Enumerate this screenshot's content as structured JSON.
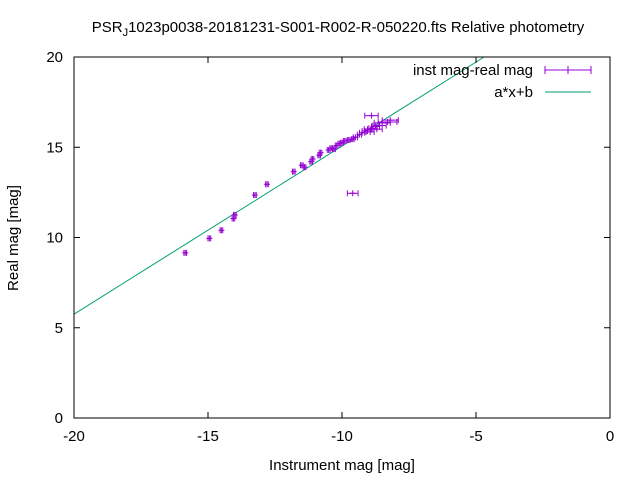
{
  "chart_data": {
    "type": "scatter",
    "title": "PSR_J1023p0038-20181231-S001-R002-R-050220.fts Relative photometry",
    "title_prefix": "PSR",
    "title_subscript": "J",
    "title_suffix": "1023p0038-20181231-S001-R002-R-050220.fts Relative photometry",
    "xlabel": "Instrument mag [mag]",
    "ylabel": "Real mag [mag]",
    "xlim": [
      -20,
      0
    ],
    "ylim": [
      0,
      20
    ],
    "x_ticks": [
      -20,
      -15,
      -10,
      -5,
      0
    ],
    "y_ticks": [
      0,
      5,
      10,
      15,
      20
    ],
    "x_tick_labels": [
      "-20",
      "-15",
      "-10",
      "-5",
      "0"
    ],
    "y_tick_labels": [
      "0",
      "5",
      "10",
      "15",
      "20"
    ],
    "grid": false,
    "legend_position": "top-right",
    "series": [
      {
        "name": "inst mag-real mag",
        "kind": "points_with_xerror",
        "color": "#9400d3",
        "points": [
          {
            "x": -15.85,
            "y": 9.15,
            "xerr": 0.05
          },
          {
            "x": -14.95,
            "y": 9.95,
            "xerr": 0.05
          },
          {
            "x": -14.5,
            "y": 10.4,
            "xerr": 0.05
          },
          {
            "x": -14.05,
            "y": 11.05,
            "xerr": 0.05
          },
          {
            "x": -14.0,
            "y": 11.25,
            "xerr": 0.05
          },
          {
            "x": -13.25,
            "y": 12.35,
            "xerr": 0.05
          },
          {
            "x": -12.8,
            "y": 12.95,
            "xerr": 0.05
          },
          {
            "x": -11.8,
            "y": 13.65,
            "xerr": 0.05
          },
          {
            "x": -11.5,
            "y": 14.0,
            "xerr": 0.05
          },
          {
            "x": -11.4,
            "y": 13.9,
            "xerr": 0.05
          },
          {
            "x": -11.15,
            "y": 14.2,
            "xerr": 0.05
          },
          {
            "x": -11.1,
            "y": 14.35,
            "xerr": 0.05
          },
          {
            "x": -10.85,
            "y": 14.55,
            "xerr": 0.05
          },
          {
            "x": -10.8,
            "y": 14.7,
            "xerr": 0.05
          },
          {
            "x": -10.5,
            "y": 14.85,
            "xerr": 0.05
          },
          {
            "x": -10.4,
            "y": 14.95,
            "xerr": 0.05
          },
          {
            "x": -10.3,
            "y": 14.9,
            "xerr": 0.05
          },
          {
            "x": -10.2,
            "y": 15.1,
            "xerr": 0.05
          },
          {
            "x": -10.1,
            "y": 15.2,
            "xerr": 0.05
          },
          {
            "x": -10.0,
            "y": 15.25,
            "xerr": 0.05
          },
          {
            "x": -9.9,
            "y": 15.35,
            "xerr": 0.05
          },
          {
            "x": -9.75,
            "y": 15.4,
            "xerr": 0.05
          },
          {
            "x": -9.6,
            "y": 15.45,
            "xerr": 0.05
          },
          {
            "x": -9.5,
            "y": 15.55,
            "xerr": 0.08
          },
          {
            "x": -9.35,
            "y": 15.7,
            "xerr": 0.08
          },
          {
            "x": -9.25,
            "y": 15.8,
            "xerr": 0.1
          },
          {
            "x": -9.15,
            "y": 15.9,
            "xerr": 0.1
          },
          {
            "x": -9.05,
            "y": 16.0,
            "xerr": 0.12
          },
          {
            "x": -8.95,
            "y": 15.85,
            "xerr": 0.15
          },
          {
            "x": -8.85,
            "y": 16.05,
            "xerr": 0.15
          },
          {
            "x": -8.75,
            "y": 16.15,
            "xerr": 0.15
          },
          {
            "x": -8.7,
            "y": 16.0,
            "xerr": 0.2
          },
          {
            "x": -8.6,
            "y": 16.2,
            "xerr": 0.25
          },
          {
            "x": -8.5,
            "y": 16.35,
            "xerr": 0.3
          },
          {
            "x": -8.3,
            "y": 16.4,
            "xerr": 0.35
          },
          {
            "x": -8.2,
            "y": 16.5,
            "xerr": 0.3
          },
          {
            "x": -8.9,
            "y": 16.75,
            "xerr": 0.25
          },
          {
            "x": -9.6,
            "y": 12.45,
            "xerr": 0.2
          }
        ]
      },
      {
        "name": "a*x+b",
        "kind": "line",
        "color": "#009e73",
        "points": [
          {
            "x": -20,
            "y": 5.75
          },
          {
            "x": -4.7,
            "y": 20
          }
        ]
      }
    ]
  }
}
